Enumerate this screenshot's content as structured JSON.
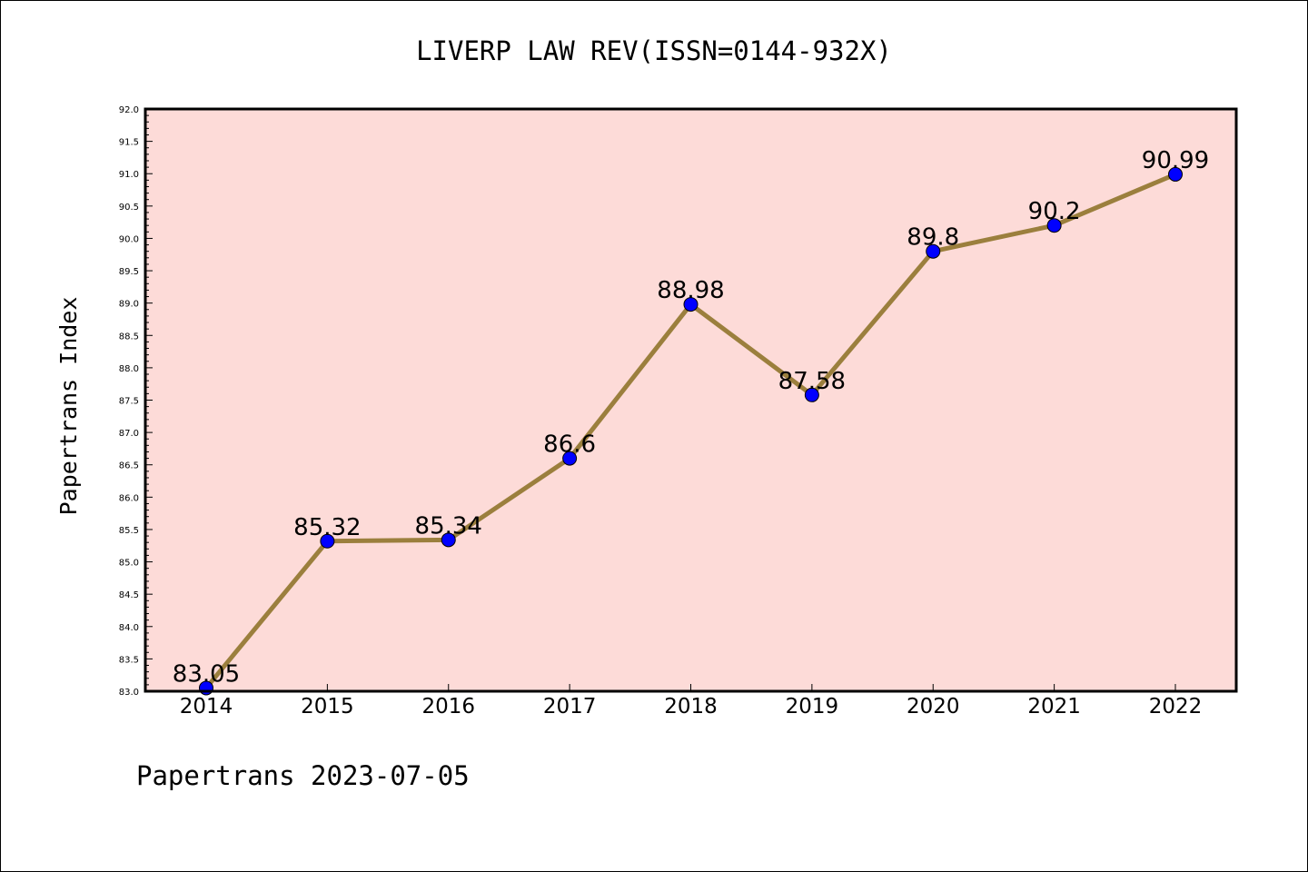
{
  "chart_data": {
    "type": "line",
    "title": "LIVERP LAW REV(ISSN=0144-932X)",
    "ylabel": "Papertrans Index",
    "xlabel": "",
    "footer": "Papertrans 2023-07-05",
    "categories": [
      "2014",
      "2015",
      "2016",
      "2017",
      "2018",
      "2019",
      "2020",
      "2021",
      "2022"
    ],
    "values": [
      83.05,
      85.32,
      85.34,
      86.6,
      88.98,
      87.58,
      89.8,
      90.2,
      90.99
    ],
    "value_labels": [
      "83.05",
      "85.32",
      "85.34",
      "86.6",
      "88.98",
      "87.58",
      "89.8",
      "90.2",
      "90.99"
    ],
    "ylim": [
      83.0,
      92.0
    ],
    "yticks": [
      "83.0",
      "83.5",
      "84.0",
      "84.5",
      "85.0",
      "85.5",
      "86.0",
      "86.5",
      "87.0",
      "87.5",
      "88.0",
      "88.5",
      "89.0",
      "89.5",
      "90.0",
      "90.5",
      "91.0",
      "91.5",
      "92.0"
    ],
    "grid": false,
    "colors": {
      "plot_background": "#fddbd8",
      "line": "#9b7f3d",
      "marker": "#0000ff"
    }
  }
}
